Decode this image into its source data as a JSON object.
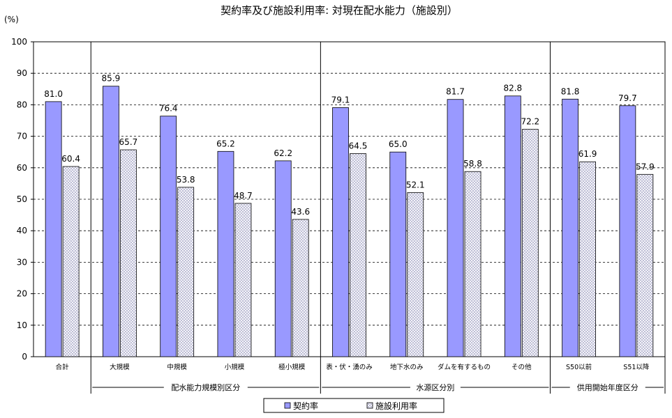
{
  "chart_data": {
    "type": "bar",
    "title": "契約率及び施設利用率: 対現在配水能力（施設別）",
    "ylabel": "(%)",
    "ylim": [
      0,
      100
    ],
    "yticks": [
      0,
      10,
      20,
      30,
      40,
      50,
      60,
      70,
      80,
      90,
      100
    ],
    "grid": true,
    "legend_position": "bottom",
    "categories": [
      "合計",
      "大規模",
      "中規模",
      "小規模",
      "極小規模",
      "表・伏・湧のみ",
      "地下水のみ",
      "ダムを有するもの",
      "その他",
      "S50以前",
      "S51以降"
    ],
    "groups": [
      {
        "label": "",
        "categories": [
          "合計"
        ]
      },
      {
        "label": "配水能力規模別区分",
        "categories": [
          "大規模",
          "中規模",
          "小規模",
          "極小規模"
        ]
      },
      {
        "label": "水源区分別",
        "categories": [
          "表・伏・湧のみ",
          "地下水のみ",
          "ダムを有するもの",
          "その他"
        ]
      },
      {
        "label": "供用開始年度区分",
        "categories": [
          "S50以前",
          "S51以降"
        ]
      }
    ],
    "series": [
      {
        "name": "契約率",
        "color": "#9999ff",
        "values": [
          81.0,
          85.9,
          76.4,
          65.2,
          62.2,
          79.1,
          65.0,
          81.7,
          82.8,
          81.8,
          79.7
        ]
      },
      {
        "name": "施設利用率",
        "color": "#e6e6f0",
        "pattern": "crosshatch",
        "values": [
          60.4,
          65.7,
          53.8,
          48.7,
          43.6,
          64.5,
          52.1,
          58.8,
          72.2,
          61.9,
          57.9
        ]
      }
    ]
  }
}
